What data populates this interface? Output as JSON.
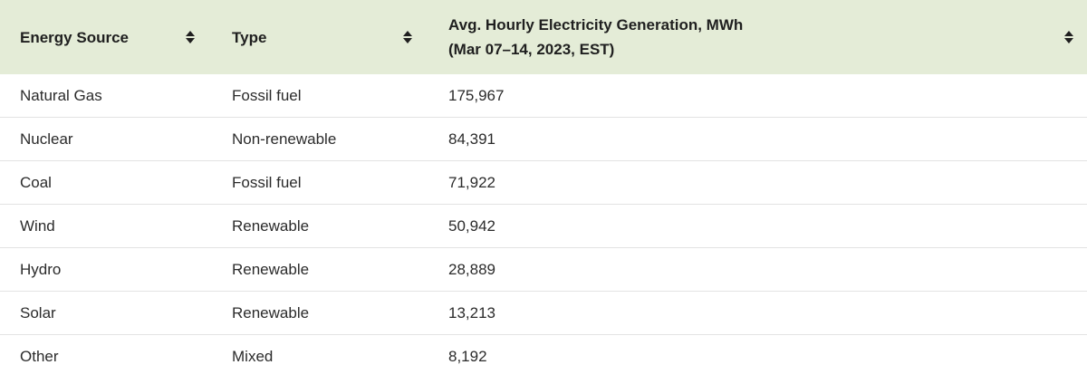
{
  "table": {
    "columns": [
      {
        "key": "source",
        "label_line1": "Energy Source",
        "label_line2": "",
        "sort_icon": "sort-updown-icon"
      },
      {
        "key": "type",
        "label_line1": "Type",
        "label_line2": "",
        "sort_icon": "sort-updown-icon"
      },
      {
        "key": "generation",
        "label_line1": "Avg. Hourly Electricity Generation, MWh",
        "label_line2": "(Mar 07–14, 2023, EST)",
        "sort_icon": "sort-updown-icon"
      }
    ],
    "rows": [
      {
        "source": "Natural Gas",
        "type": "Fossil fuel",
        "generation": "175,967"
      },
      {
        "source": "Nuclear",
        "type": "Non-renewable",
        "generation": "84,391"
      },
      {
        "source": "Coal",
        "type": "Fossil fuel",
        "generation": "71,922"
      },
      {
        "source": "Wind",
        "type": "Renewable",
        "generation": "50,942"
      },
      {
        "source": "Hydro",
        "type": "Renewable",
        "generation": "28,889"
      },
      {
        "source": "Solar",
        "type": "Renewable",
        "generation": "13,213"
      },
      {
        "source": "Other",
        "type": "Mixed",
        "generation": "8,192"
      }
    ],
    "colors": {
      "header_bg": "#e4ecd7",
      "row_divider": "#e3e3e3",
      "text": "#2b2b2b"
    }
  }
}
